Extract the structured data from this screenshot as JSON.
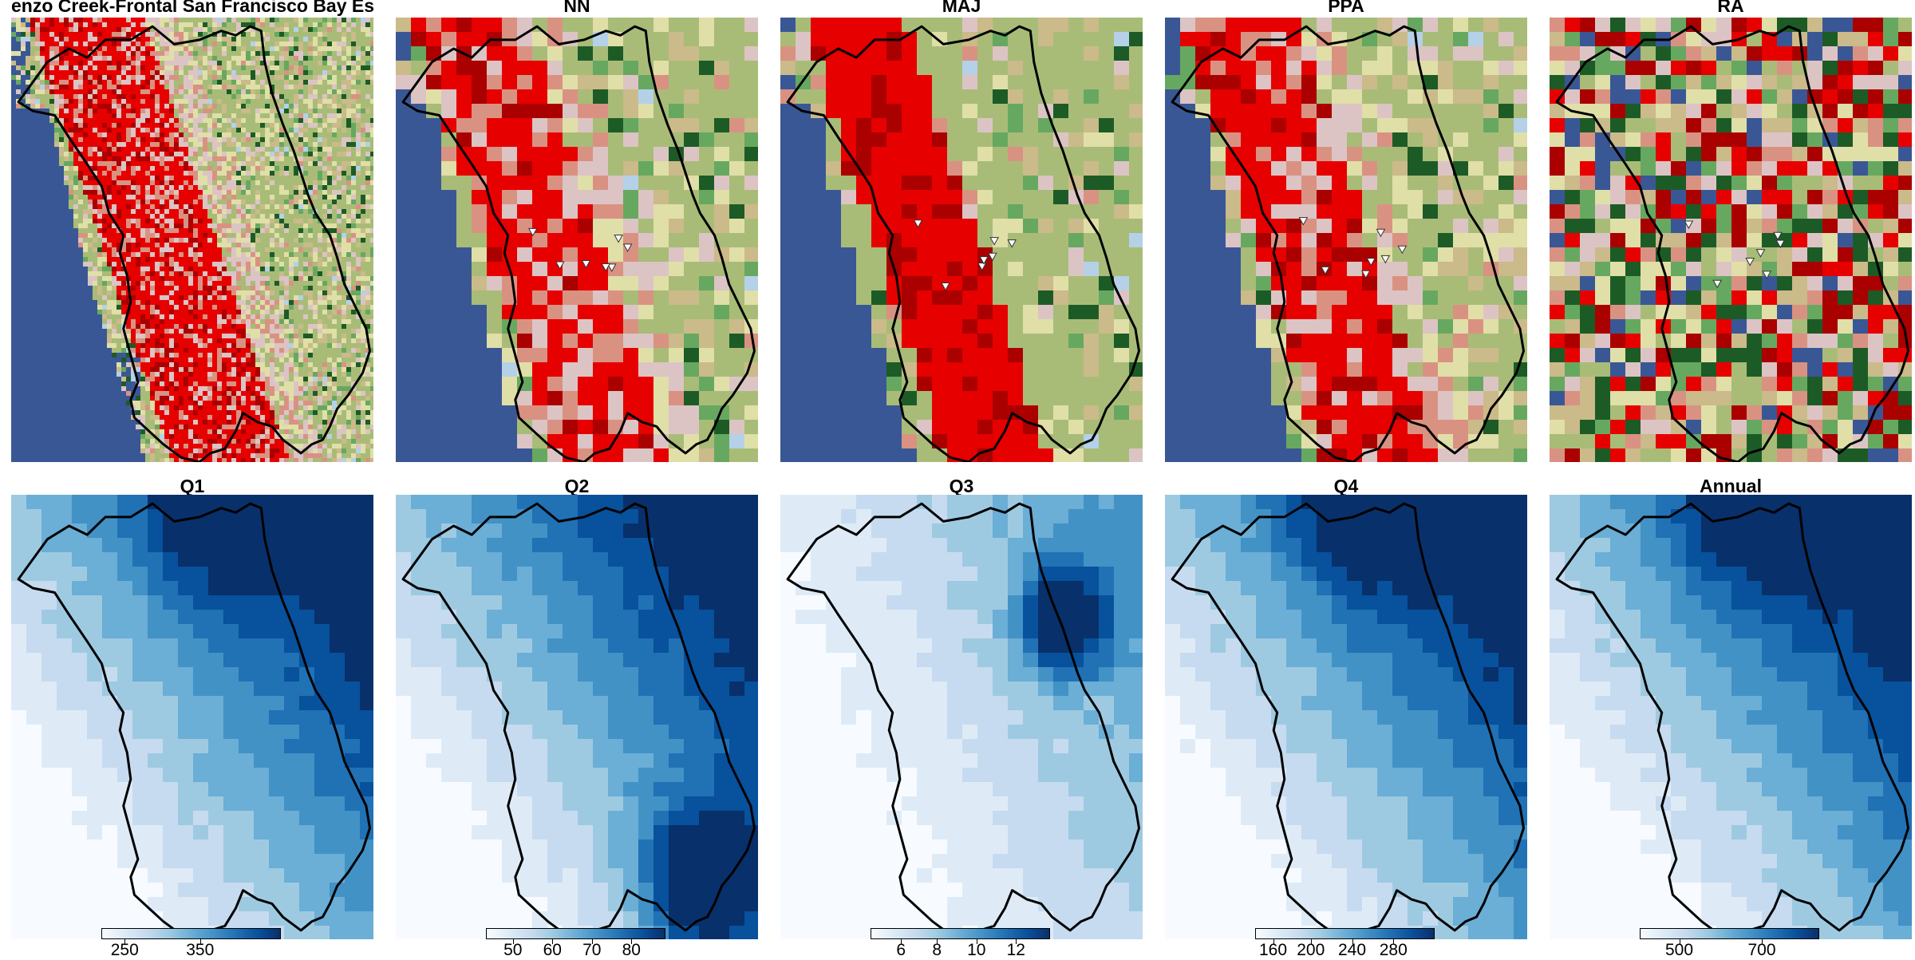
{
  "figure": {
    "top_panels": [
      {
        "id": "landcover",
        "title": "enzo Creek-Frontal San Francisco Bay Estu",
        "kind": "landcover"
      },
      {
        "id": "nn",
        "title": "NN",
        "kind": "grid",
        "seed": 11,
        "markers": true
      },
      {
        "id": "maj",
        "title": "MAJ",
        "kind": "grid",
        "seed": 23,
        "markers": true
      },
      {
        "id": "ppa",
        "title": "PPA",
        "kind": "grid",
        "seed": 37,
        "markers": true
      },
      {
        "id": "ra",
        "title": "RA",
        "kind": "random",
        "seed": 53,
        "markers": true
      }
    ],
    "bottom_panels": [
      {
        "id": "q1",
        "title": "Q1",
        "seed": 5,
        "colorbar": {
          "ticks": [
            "250",
            "350"
          ],
          "tick_positions": [
            0.13,
            0.55
          ]
        }
      },
      {
        "id": "q2",
        "title": "Q2",
        "seed": 8,
        "colorbar": {
          "ticks": [
            "50",
            "60",
            "70",
            "80"
          ],
          "tick_positions": [
            0.15,
            0.37,
            0.59,
            0.81
          ]
        }
      },
      {
        "id": "q3",
        "title": "Q3",
        "seed": 13,
        "colorbar": {
          "ticks": [
            "6",
            "8",
            "10",
            "12"
          ],
          "tick_positions": [
            0.17,
            0.37,
            0.59,
            0.81
          ]
        }
      },
      {
        "id": "q4",
        "title": "Q4",
        "seed": 17,
        "colorbar": {
          "ticks": [
            "160",
            "200",
            "240",
            "280"
          ],
          "tick_positions": [
            0.1,
            0.31,
            0.54,
            0.77
          ]
        }
      },
      {
        "id": "annual",
        "title": "Annual",
        "seed": 19,
        "colorbar": {
          "ticks": [
            "500",
            "700"
          ],
          "tick_positions": [
            0.22,
            0.68
          ]
        }
      }
    ],
    "landcover_palette": {
      "water": "#3a5795",
      "developed_high": "#e60000",
      "developed_med": "#aa0000",
      "developed_low": "#d99282",
      "developed_open": "#dcc4c4",
      "forest_evergreen": "#1d5b26",
      "forest_deciduous": "#67a860",
      "shrub": "#cbba8a",
      "grassland": "#e0dfa8",
      "pasture": "#a8bc78",
      "barren": "#a87238",
      "wetland": "#b4d1e8"
    },
    "blues_palette": [
      "#f7fbff",
      "#deebf7",
      "#c6dbef",
      "#9ecae1",
      "#6baed6",
      "#4292c6",
      "#2171b5",
      "#08519c",
      "#08306b"
    ]
  }
}
